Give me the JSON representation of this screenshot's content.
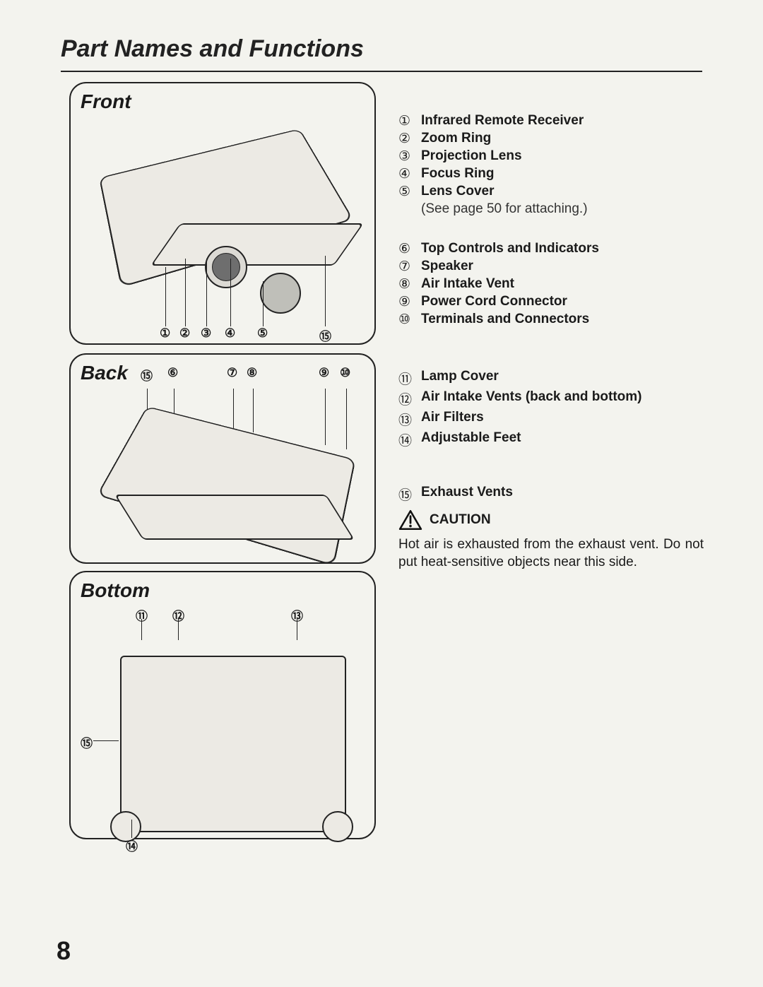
{
  "page": {
    "title": "Part Names and Functions",
    "number": "8"
  },
  "panels": {
    "front": {
      "title": "Front",
      "callouts": [
        "①",
        "②",
        "③",
        "④",
        "⑤",
        "⑮"
      ]
    },
    "back": {
      "title": "Back",
      "callouts": [
        "⑮",
        "⑥",
        "⑦",
        "⑧",
        "⑨",
        "⑩"
      ]
    },
    "bottom": {
      "title": "Bottom",
      "callouts_top": [
        "⑪",
        "⑫",
        "⑬"
      ],
      "callout_left": "⑮",
      "callout_bottom": "⑭"
    }
  },
  "parts_group1": [
    {
      "num": "①",
      "label": "Infrared Remote Receiver"
    },
    {
      "num": "②",
      "label": "Zoom Ring"
    },
    {
      "num": "③",
      "label": "Projection Lens"
    },
    {
      "num": "④",
      "label": "Focus Ring"
    },
    {
      "num": "⑤",
      "label": "Lens Cover",
      "note": "(See page 50 for attaching.)"
    }
  ],
  "parts_group2": [
    {
      "num": "⑥",
      "label": "Top Controls and Indicators"
    },
    {
      "num": "⑦",
      "label": "Speaker"
    },
    {
      "num": "⑧",
      "label": "Air Intake Vent"
    },
    {
      "num": "⑨",
      "label": "Power Cord Connector"
    },
    {
      "num": "⑩",
      "label": "Terminals and Connectors"
    }
  ],
  "parts_group3": [
    {
      "num": "⑪",
      "label": "Lamp Cover"
    },
    {
      "num": "⑫",
      "label": "Air Intake Vents (back and bottom)"
    },
    {
      "num": "⑬",
      "label": "Air Filters"
    },
    {
      "num": "⑭",
      "label": "Adjustable Feet"
    }
  ],
  "exhaust": {
    "num": "⑮",
    "label": "Exhaust Vents"
  },
  "caution": {
    "label": "CAUTION",
    "text": "Hot air is exhausted from the exhaust vent.  Do not put heat-sensitive objects near this side."
  },
  "style": {
    "page_bg": "#f3f3ee",
    "text_color": "#1a1a1a",
    "rule_color": "#222222",
    "panel_border_radius": 24,
    "title_fontsize_pt": 26,
    "panel_title_fontsize_pt": 21,
    "body_fontsize_pt": 14,
    "page_number_fontsize_pt": 27
  }
}
